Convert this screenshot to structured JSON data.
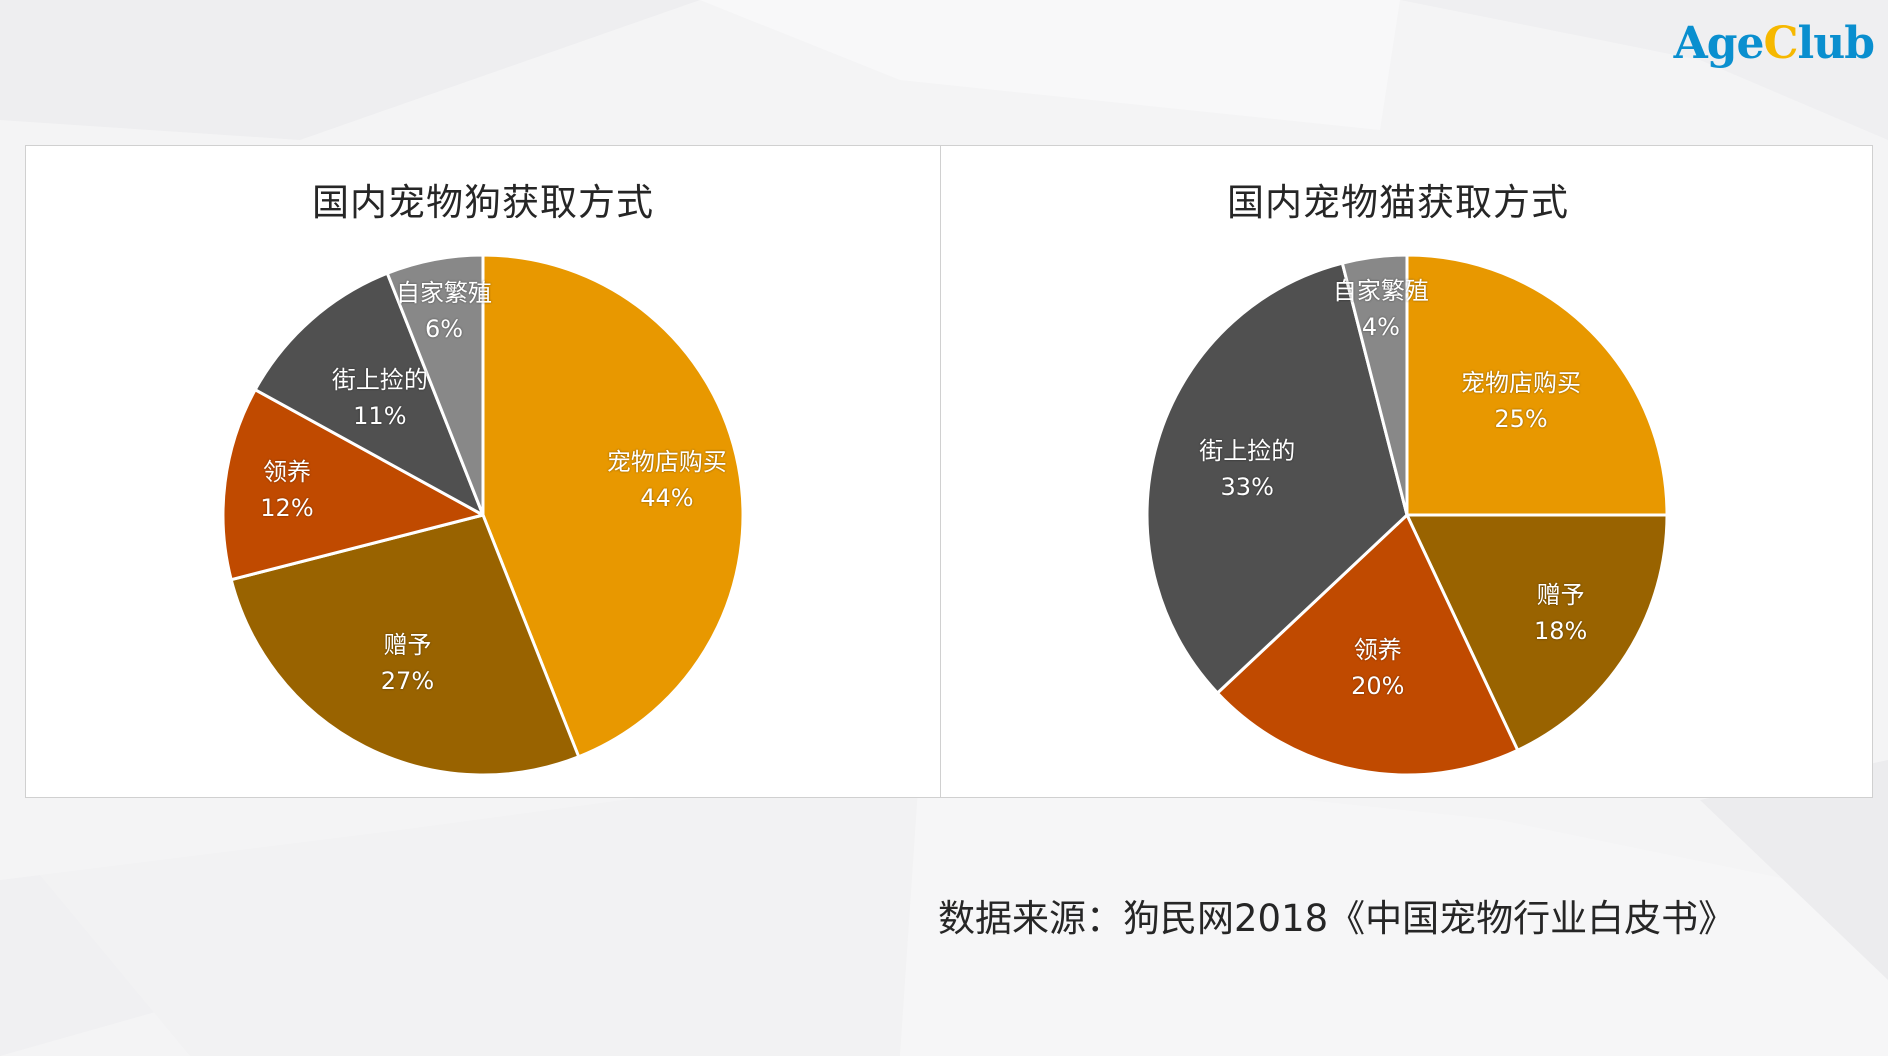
{
  "logo": {
    "part1": "Age",
    "part2": "C",
    "part3": "lub"
  },
  "source_text": "数据来源：狗民网2018《中国宠物行业白皮书》",
  "colors": {
    "宠物店购买": "#e89800",
    "赠予": "#996300",
    "领养": "#c04a00",
    "街上捡的": "#505050",
    "自家繁殖": "#888888"
  },
  "chart_data": [
    {
      "type": "pie",
      "title": "国内宠物狗获取方式",
      "categories": [
        "宠物店购买",
        "赠予",
        "领养",
        "街上捡的",
        "自家繁殖"
      ],
      "values": [
        44,
        27,
        12,
        11,
        6
      ],
      "value_labels": [
        "44%",
        "27%",
        "12%",
        "11%",
        "6%"
      ],
      "start_angle": "12 o'clock, clockwise",
      "legend": "none (data labels inside slices)"
    },
    {
      "type": "pie",
      "title": "国内宠物猫获取方式",
      "categories": [
        "宠物店购买",
        "赠予",
        "领养",
        "街上捡的",
        "自家繁殖"
      ],
      "values": [
        25,
        18,
        20,
        33,
        4
      ],
      "value_labels": [
        "25%",
        "18%",
        "20%",
        "33%",
        "4%"
      ],
      "start_angle": "12 o'clock, clockwise",
      "legend": "none (data labels inside slices)"
    }
  ]
}
